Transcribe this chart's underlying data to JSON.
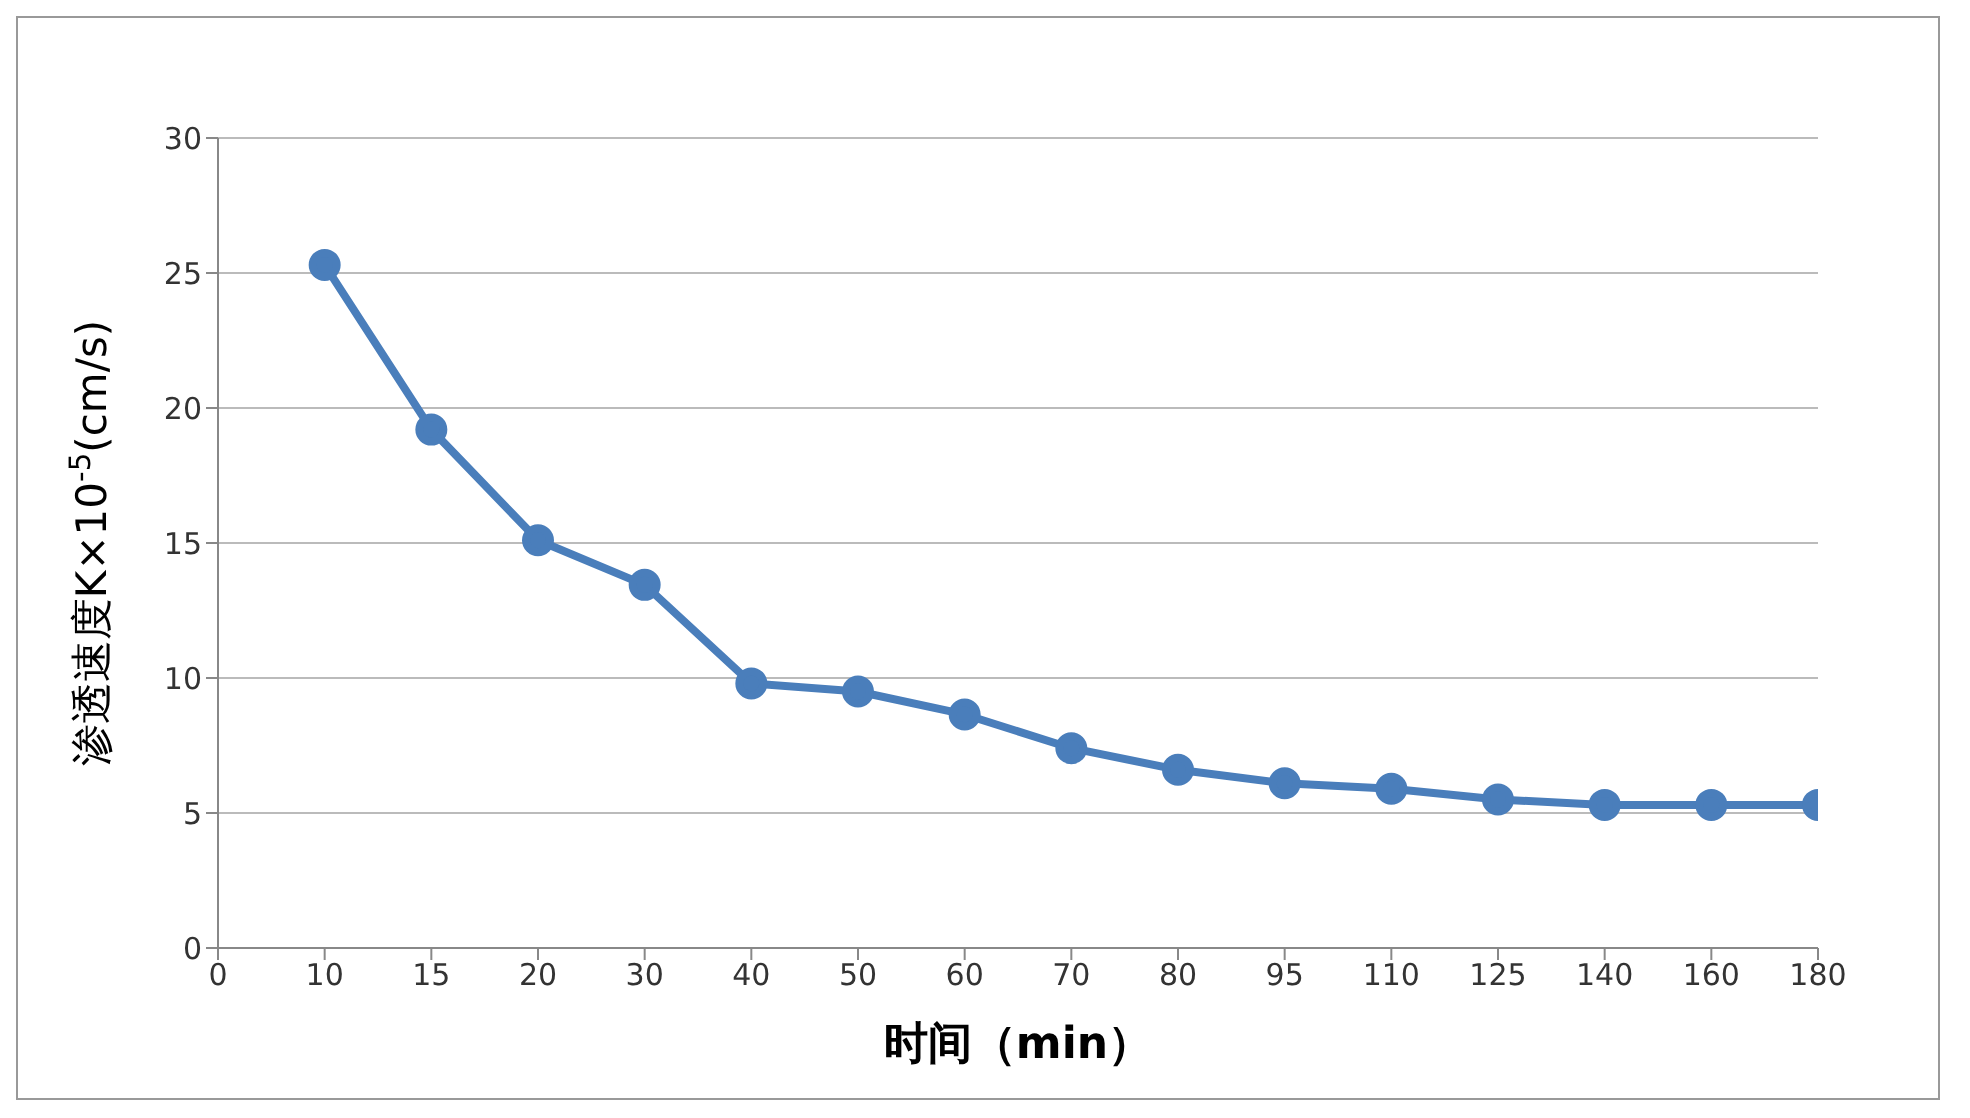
{
  "chart_data": {
    "type": "line",
    "xlabel": "时间（min）",
    "ylabel": "渗透速度K×10$^{-5}$(cm/s)",
    "categories": [
      "0",
      "10",
      "15",
      "20",
      "30",
      "40",
      "50",
      "60",
      "70",
      "80",
      "95",
      "110",
      "125",
      "140",
      "160",
      "180"
    ],
    "series": [
      {
        "color": "#4a7ebb",
        "values": [
          null,
          25.3,
          19.2,
          15.1,
          13.45,
          9.8,
          9.5,
          8.65,
          7.4,
          6.6,
          6.1,
          5.9,
          5.5,
          5.3,
          5.3,
          5.3
        ]
      }
    ],
    "ylim": [
      0,
      30
    ],
    "yticks": [
      0,
      5,
      10,
      15,
      20,
      25,
      30
    ],
    "grid": "y",
    "marker": "circle",
    "line_style": "solid"
  }
}
